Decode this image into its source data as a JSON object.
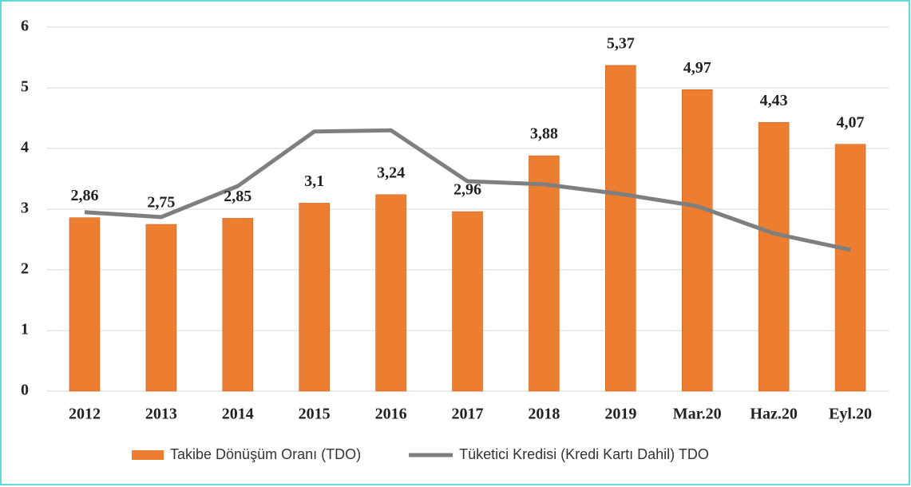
{
  "chart_data": {
    "type": "bar",
    "categories": [
      "2012",
      "2013",
      "2014",
      "2015",
      "2016",
      "2017",
      "2018",
      "2019",
      "Mar.20",
      "Haz.20",
      "Eyl.20"
    ],
    "series": [
      {
        "name": "Takibe Dönüşüm Oranı (TDO)",
        "type": "bar",
        "color": "#ed7d31",
        "values": [
          2.86,
          2.75,
          2.85,
          3.1,
          3.24,
          2.96,
          3.88,
          5.37,
          4.97,
          4.43,
          4.07
        ],
        "value_labels": [
          "2,86",
          "2,75",
          "2,85",
          "3,1",
          "3,24",
          "2,96",
          "3,88",
          "5,37",
          "4,97",
          "4,43",
          "4,07"
        ]
      },
      {
        "name": "Tüketici Kredisi (Kredi Kartı Dahil) TDO",
        "type": "line",
        "color": "#7f7f7f",
        "values": [
          2.95,
          2.87,
          3.38,
          4.28,
          4.3,
          3.46,
          3.41,
          3.25,
          3.05,
          2.6,
          2.33
        ]
      }
    ],
    "ylim": [
      0,
      6
    ],
    "yticks": [
      0,
      1,
      2,
      3,
      4,
      5,
      6
    ],
    "grid": true,
    "legend": "bottom"
  }
}
